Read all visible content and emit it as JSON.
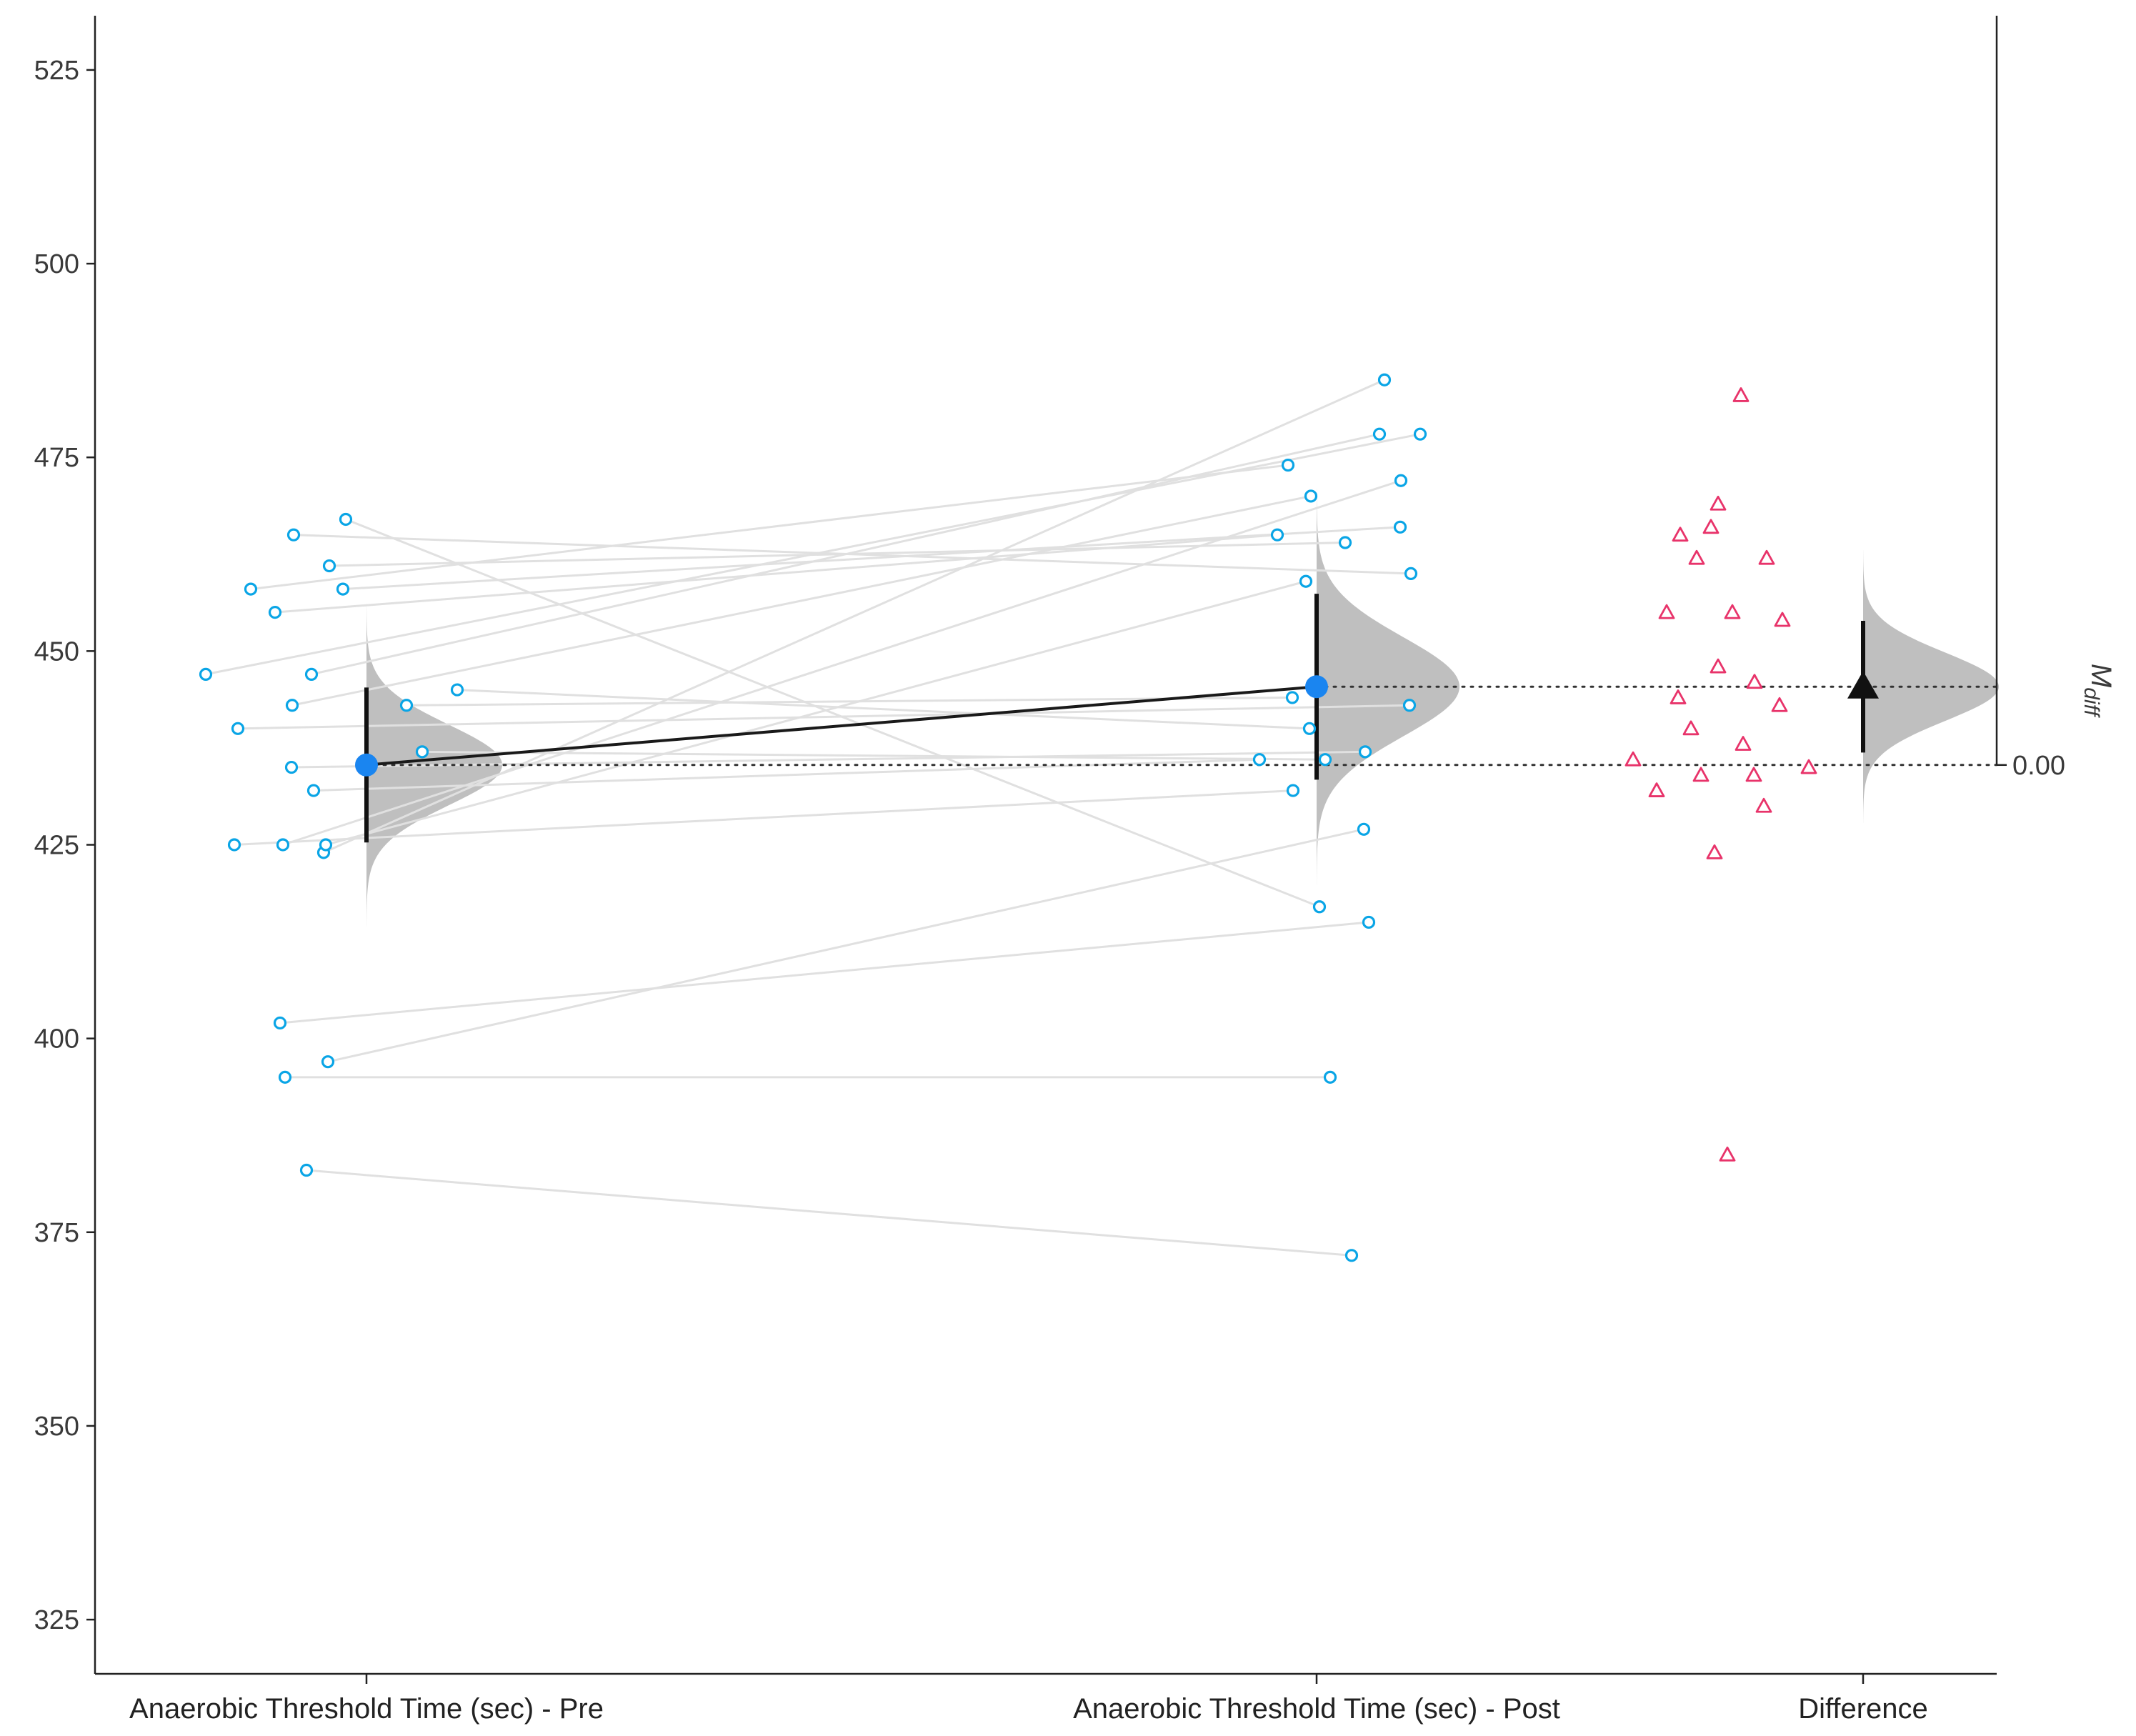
{
  "chart_data": {
    "type": "scatter",
    "subtype": "paired estimation plot",
    "title": "",
    "xlabel": "",
    "ylabel": "",
    "ylim": [
      318,
      532
    ],
    "yticks": [
      325,
      350,
      375,
      400,
      425,
      450,
      475,
      500,
      525
    ],
    "categories": [
      "Anaerobic Threshold Time (sec) - Pre",
      "Anaerobic Threshold Time (sec) - Post",
      "Difference"
    ],
    "right_axis": {
      "label": "M_diff",
      "label_main": "M",
      "label_sub": "diff",
      "tick_label": "0.00",
      "zero_at": 435.3
    },
    "group_mean_ci": [
      {
        "group": "Anaerobic Threshold Time (sec) - Pre",
        "mean": 435.3,
        "ci_low": 425.3,
        "ci_high": 445.3
      },
      {
        "group": "Anaerobic Threshold Time (sec) - Post",
        "mean": 445.4,
        "ci_low": 433.4,
        "ci_high": 457.4
      }
    ],
    "mean_difference": {
      "value": 10.1,
      "ci_low": 1.6,
      "ci_high": 18.6
    },
    "pairs": [
      {
        "pre": 447,
        "post": 478
      },
      {
        "pre": 458,
        "post": 474
      },
      {
        "pre": 465,
        "post": 460
      },
      {
        "pre": 455,
        "post": 465
      },
      {
        "pre": 461,
        "post": 464
      },
      {
        "pre": 467,
        "post": 417
      },
      {
        "pre": 458,
        "post": 466
      },
      {
        "pre": 447,
        "post": 478
      },
      {
        "pre": 443,
        "post": 470
      },
      {
        "pre": 443,
        "post": 444
      },
      {
        "pre": 445,
        "post": 440
      },
      {
        "pre": 440,
        "post": 443
      },
      {
        "pre": 437,
        "post": 436
      },
      {
        "pre": 435,
        "post": 437
      },
      {
        "pre": 432,
        "post": 436
      },
      {
        "pre": 425,
        "post": 432
      },
      {
        "pre": 425,
        "post": 472
      },
      {
        "pre": 424,
        "post": 485
      },
      {
        "pre": 425,
        "post": 459
      },
      {
        "pre": 402,
        "post": 415
      },
      {
        "pre": 397,
        "post": 427
      },
      {
        "pre": 395,
        "post": 395
      },
      {
        "pre": 383,
        "post": 372
      }
    ],
    "differences": [
      483,
      469,
      466,
      465,
      462,
      462,
      455,
      455,
      454,
      448,
      446,
      444,
      443,
      440,
      438,
      436,
      435,
      434,
      434,
      432,
      430,
      424,
      385
    ],
    "colors": {
      "raw_points": "#0aa5e6",
      "difference_points": "#e8336a",
      "mean_marker": "#1a85f0",
      "distribution": "#bfbfbf",
      "pair_lines": "#e0e0e0",
      "mean_line": "#1a1a1a"
    }
  }
}
